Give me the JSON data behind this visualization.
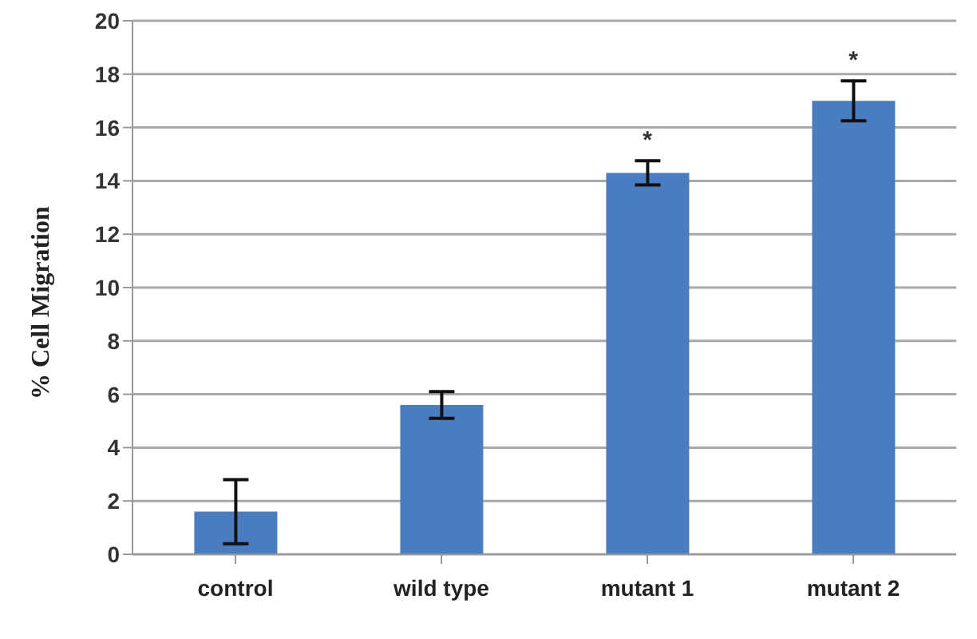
{
  "chart_data": {
    "type": "bar",
    "ylabel": "% Cell Migration",
    "categories": [
      "control",
      "wild type",
      "mutant 1",
      "mutant 2"
    ],
    "values": [
      1.6,
      5.6,
      14.3,
      17.0
    ],
    "errors": [
      1.2,
      0.5,
      0.45,
      0.75
    ],
    "color": "#4a7cc0",
    "ylim": [
      0,
      20
    ],
    "yticks": [
      0,
      2,
      4,
      6,
      8,
      10,
      12,
      14,
      16,
      18,
      20
    ],
    "grid": "y",
    "annotations": [
      {
        "text": "*",
        "x": "mutant 1",
        "y": 14.3
      },
      {
        "text": "*",
        "x": "mutant 2",
        "y": 17.0
      }
    ]
  }
}
